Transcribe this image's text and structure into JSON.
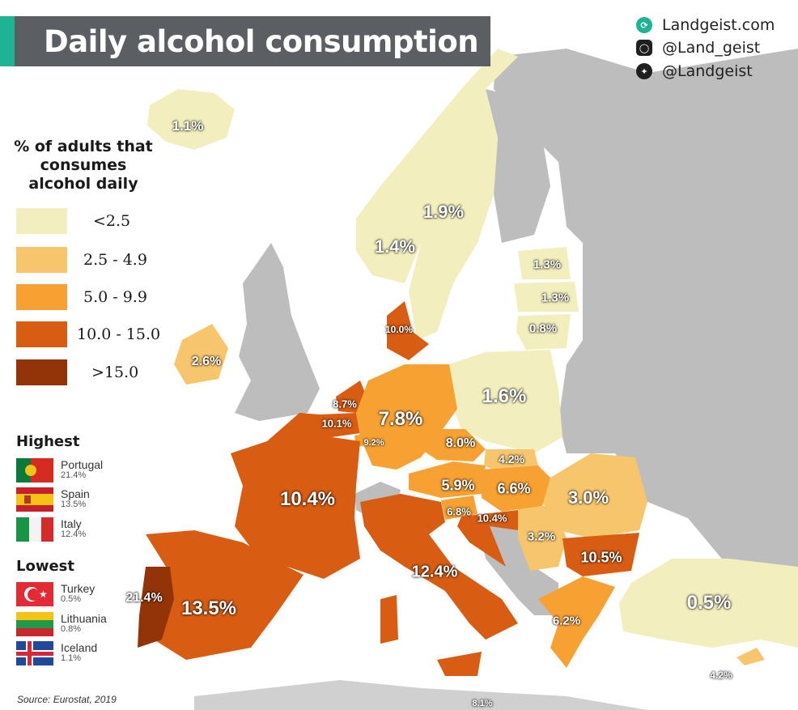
{
  "title": "Daily alcohol consumption",
  "social": [
    {
      "icon": "globe-icon",
      "text": "Landgeist.com"
    },
    {
      "icon": "instagram-icon",
      "text": "@Land_geist"
    },
    {
      "icon": "twitter-icon",
      "text": "@Landgeist"
    }
  ],
  "legend": {
    "title_lines": [
      "% of adults that",
      "consumes",
      "alcohol daily"
    ],
    "bins": [
      {
        "label": "<2.5",
        "color": "#f2eebd"
      },
      {
        "label": "2.5 - 4.9",
        "color": "#f7c66c"
      },
      {
        "label": "5.0 - 9.9",
        "color": "#f7a133"
      },
      {
        "label": "10.0 - 15.0",
        "color": "#d85c12"
      },
      {
        "label": ">15.0",
        "color": "#933408"
      }
    ]
  },
  "highest": {
    "title": "Highest",
    "items": [
      {
        "name": "Portugal",
        "value": "21.4%"
      },
      {
        "name": "Spain",
        "value": "13.5%"
      },
      {
        "name": "Italy",
        "value": "12.4%"
      }
    ]
  },
  "lowest": {
    "title": "Lowest",
    "items": [
      {
        "name": "Turkey",
        "value": "0.5%"
      },
      {
        "name": "Lithuania",
        "value": "0.8%"
      },
      {
        "name": "Iceland",
        "value": "1.1%"
      }
    ]
  },
  "source": "Source: Eurostat, 2019",
  "colors": {
    "no_data": "#bdbdbd",
    "sea": "#ffffff",
    "accent": "#1db394",
    "title_bg": "#5b5e62"
  },
  "map_labels": {
    "iceland": "1.1%",
    "norway": "1.4%",
    "sweden": "1.9%",
    "estonia": "1.3%",
    "latvia": "1.3%",
    "lithuania": "0.8%",
    "denmark": "10.0%",
    "ireland": "2.6%",
    "netherlands": "8.7%",
    "belgium": "10.1%",
    "luxembourg": "9.2%",
    "germany": "7.8%",
    "poland": "1.6%",
    "czechia": "8.0%",
    "slovakia": "4.2%",
    "austria": "5.9%",
    "hungary": "6.6%",
    "romania": "3.0%",
    "slovenia": "6.8%",
    "croatia": "10.4%",
    "serbia": "3.2%",
    "bulgaria": "10.5%",
    "france": "10.4%",
    "spain": "13.5%",
    "portugal": "21.4%",
    "italy": "12.4%",
    "greece": "6.2%",
    "turkey": "0.5%",
    "cyprus": "4.2%",
    "malta": "8.1%"
  }
}
